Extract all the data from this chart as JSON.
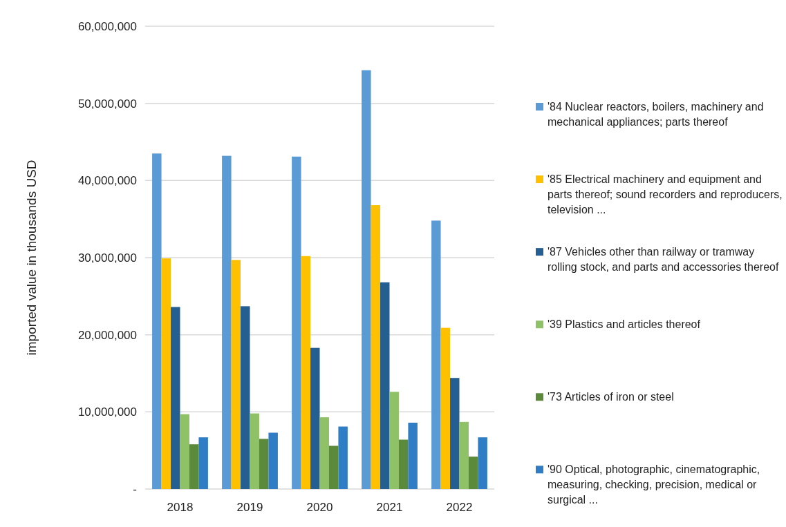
{
  "chart_data": {
    "type": "bar",
    "ylabel": "imported value in thousands USD",
    "categories": [
      "2018",
      "2019",
      "2020",
      "2021",
      "2022"
    ],
    "series": [
      {
        "name": "'84 Nuclear reactors, boilers, machinery and mechanical appliances; parts thereof",
        "color": "#5b9bd5",
        "values": [
          43500000,
          43200000,
          43100000,
          54300000,
          34800000
        ]
      },
      {
        "name": "'85 Electrical machinery and equipment and parts thereof; sound recorders and reproducers, television ...",
        "color": "#ffc000",
        "values": [
          29900000,
          29700000,
          30200000,
          36800000,
          20900000
        ]
      },
      {
        "name": "'87 Vehicles other than railway or tramway rolling stock, and parts and accessories thereof",
        "color": "#255e91",
        "values": [
          23600000,
          23700000,
          18300000,
          26800000,
          14400000
        ]
      },
      {
        "name": "'39 Plastics and articles thereof",
        "color": "#8fc167",
        "values": [
          9700000,
          9800000,
          9300000,
          12600000,
          8700000
        ]
      },
      {
        "name": "'73 Articles of iron or steel",
        "color": "#5b8a3a",
        "values": [
          5800000,
          6500000,
          5600000,
          6400000,
          4200000
        ]
      },
      {
        "name": "'90 Optical, photographic, cinematographic, measuring, checking, precision, medical or surgical ...",
        "color": "#2f7dc4",
        "values": [
          6700000,
          7300000,
          8100000,
          8600000,
          6700000
        ]
      }
    ],
    "ylim": [
      0,
      60000000
    ],
    "yticks": [
      {
        "value": 0,
        "label": "-"
      },
      {
        "value": 10000000,
        "label": "10,000,000"
      },
      {
        "value": 20000000,
        "label": "20,000,000"
      },
      {
        "value": 30000000,
        "label": "30,000,000"
      },
      {
        "value": 40000000,
        "label": "40,000,000"
      },
      {
        "value": 50000000,
        "label": "50,000,000"
      },
      {
        "value": 60000000,
        "label": "60,000,000"
      }
    ],
    "grid": "y",
    "legend": "right"
  }
}
